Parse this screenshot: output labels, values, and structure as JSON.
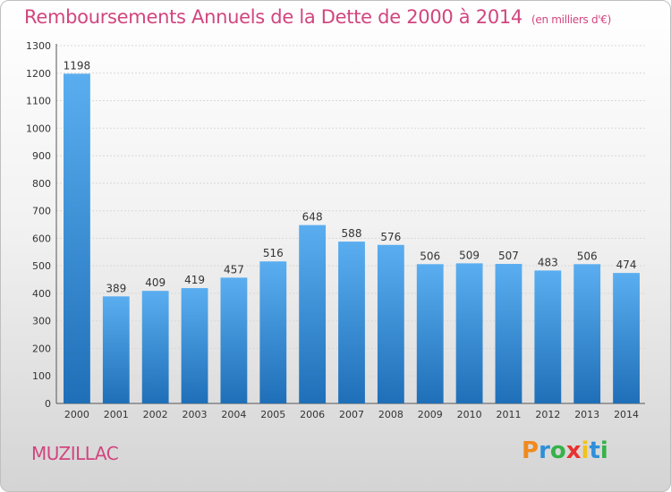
{
  "title": "Remboursements Annuels de la Dette de 2000 à 2014",
  "unit": "(en milliers d'€)",
  "commune": "MUZILLAC",
  "logo": {
    "letters": [
      "P",
      "r",
      "o",
      "x",
      "i",
      "t",
      "i"
    ],
    "colors": [
      "#f08a1d",
      "#2f8fd8",
      "#36b24a",
      "#e8312f",
      "#f2c21b",
      "#2f8fd8",
      "#36b24a"
    ]
  },
  "colors": {
    "bar_top": "#5aaef0",
    "bar_bottom": "#1f6fb8",
    "title": "#d2457f"
  },
  "chart_data": {
    "type": "bar",
    "title": "Remboursements Annuels de la Dette de 2000 à 2014",
    "categories": [
      "2000",
      "2001",
      "2002",
      "2003",
      "2004",
      "2005",
      "2006",
      "2007",
      "2008",
      "2009",
      "2010",
      "2011",
      "2012",
      "2013",
      "2014"
    ],
    "values": [
      1198,
      389,
      409,
      419,
      457,
      516,
      648,
      588,
      576,
      506,
      509,
      507,
      483,
      506,
      474
    ],
    "yticks": [
      0,
      100,
      200,
      300,
      400,
      500,
      600,
      700,
      800,
      900,
      1000,
      1100,
      1200,
      1300
    ],
    "ylim": [
      0,
      1300
    ],
    "grid": true
  }
}
